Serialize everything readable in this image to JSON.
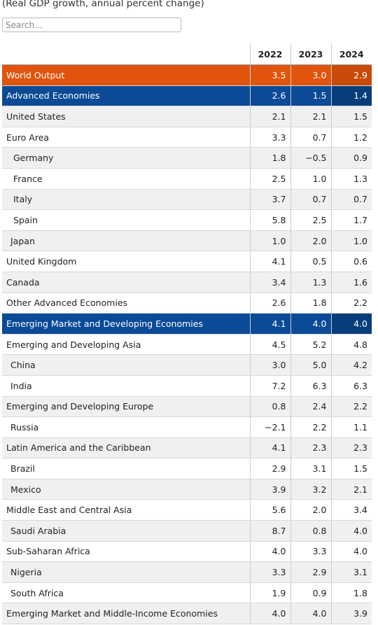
{
  "subtitle": "(Real GDP growth, annual percent change)",
  "search": {
    "placeholder": "Search..."
  },
  "table": {
    "columns": [
      "2022",
      "2023",
      "2024"
    ],
    "rows": [
      [
        "World Output",
        "3.5",
        "3.0",
        "2.9"
      ],
      [
        "Advanced Economies",
        "2.6",
        "1.5",
        "1.4"
      ],
      [
        "United States",
        "2.1",
        "2.1",
        "1.5"
      ],
      [
        "Euro Area",
        "3.3",
        "0.7",
        "1.2"
      ],
      [
        "Germany",
        "1.8",
        "−0.5",
        "0.9"
      ],
      [
        "France",
        "2.5",
        "1.0",
        "1.3"
      ],
      [
        "Italy",
        "3.7",
        "0.7",
        "0.7"
      ],
      [
        "Spain",
        "5.8",
        "2.5",
        "1.7"
      ],
      [
        "Japan",
        "1.0",
        "2.0",
        "1.0"
      ],
      [
        "United Kingdom",
        "4.1",
        "0.5",
        "0.6"
      ],
      [
        "Canada",
        "3.4",
        "1.3",
        "1.6"
      ],
      [
        "Other Advanced Economies",
        "2.6",
        "1.8",
        "2.2"
      ],
      [
        "Emerging Market and Developing Economies",
        "4.1",
        "4.0",
        "4.0"
      ],
      [
        "Emerging and Developing Asia",
        "4.5",
        "5.2",
        "4.8"
      ],
      [
        "China",
        "3.0",
        "5.0",
        "4.2"
      ],
      [
        "India",
        "7.2",
        "6.3",
        "6.3"
      ],
      [
        "Emerging and Developing Europe",
        "0.8",
        "2.4",
        "2.2"
      ],
      [
        "Russia",
        "−2.1",
        "2.2",
        "1.1"
      ],
      [
        "Latin America and the Caribbean",
        "4.1",
        "2.3",
        "2.3"
      ],
      [
        "Brazil",
        "2.9",
        "3.1",
        "1.5"
      ],
      [
        "Mexico",
        "3.9",
        "3.2",
        "2.1"
      ],
      [
        "Middle East and Central Asia",
        "5.6",
        "2.0",
        "3.4"
      ],
      [
        "Saudi Arabia",
        "8.7",
        "0.8",
        "4.0"
      ],
      [
        "Sub-Saharan Africa",
        "4.0",
        "3.3",
        "4.0"
      ],
      [
        "Nigeria",
        "3.3",
        "2.9",
        "3.1"
      ],
      [
        "South Africa",
        "1.9",
        "0.9",
        "1.8"
      ],
      [
        "Emerging Market and Middle-Income Economies",
        "4.0",
        "4.0",
        "3.9"
      ]
    ]
  }
}
